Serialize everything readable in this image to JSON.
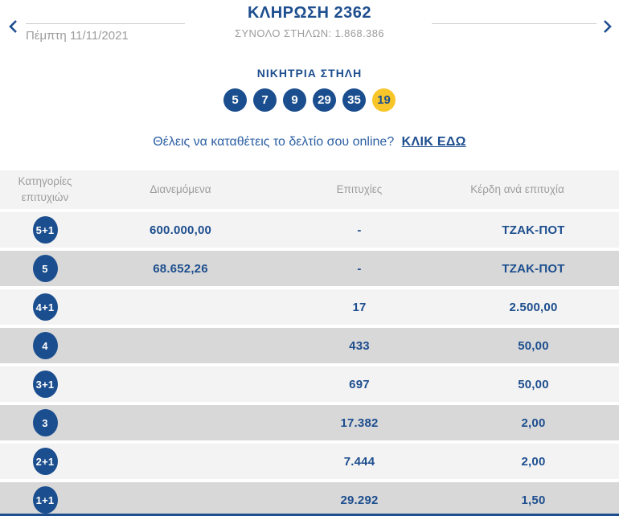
{
  "header": {
    "title": "ΚΛΗΡΩΣΗ 2362",
    "subtitle": "ΣΥΝΟΛΟ ΣΤΗΛΩΝ: 1.868.386",
    "date": "Πέμπτη 11/11/2021"
  },
  "winning": {
    "title": "ΝΙΚΗΤΡΙΑ ΣΤΗΛΗ",
    "numbers": [
      "5",
      "7",
      "9",
      "29",
      "35"
    ],
    "joker": "19"
  },
  "online": {
    "question": "Θέλεις να καταθέτεις το δελτίο σου online?",
    "link_label": "ΚΛΙΚ ΕΔΩ"
  },
  "table": {
    "headers": [
      "Κατηγορίες επιτυχιών",
      "Διανεμόμενα",
      "Επιτυχίες",
      "Κέρδη ανά επιτυχία"
    ],
    "rows": [
      {
        "category": "5+1",
        "distributed": "600.000,00",
        "winners": "-",
        "prize": "ΤΖΑΚ-ΠΟΤ"
      },
      {
        "category": "5",
        "distributed": "68.652,26",
        "winners": "-",
        "prize": "ΤΖΑΚ-ΠΟΤ"
      },
      {
        "category": "4+1",
        "distributed": "",
        "winners": "17",
        "prize": "2.500,00"
      },
      {
        "category": "4",
        "distributed": "",
        "winners": "433",
        "prize": "50,00"
      },
      {
        "category": "3+1",
        "distributed": "",
        "winners": "697",
        "prize": "50,00"
      },
      {
        "category": "3",
        "distributed": "",
        "winners": "17.382",
        "prize": "2,00"
      },
      {
        "category": "2+1",
        "distributed": "",
        "winners": "7.444",
        "prize": "2,00"
      },
      {
        "category": "1+1",
        "distributed": "",
        "winners": "29.292",
        "prize": "1,50"
      }
    ]
  },
  "colors": {
    "brand_blue": "#1d4e8e",
    "ball_blue": "#1b4e8e",
    "joker_yellow": "#f9c62a",
    "text_gray": "#9d9d9d",
    "row_light": "#f3f3f3",
    "row_dark": "#d8d8d8"
  }
}
